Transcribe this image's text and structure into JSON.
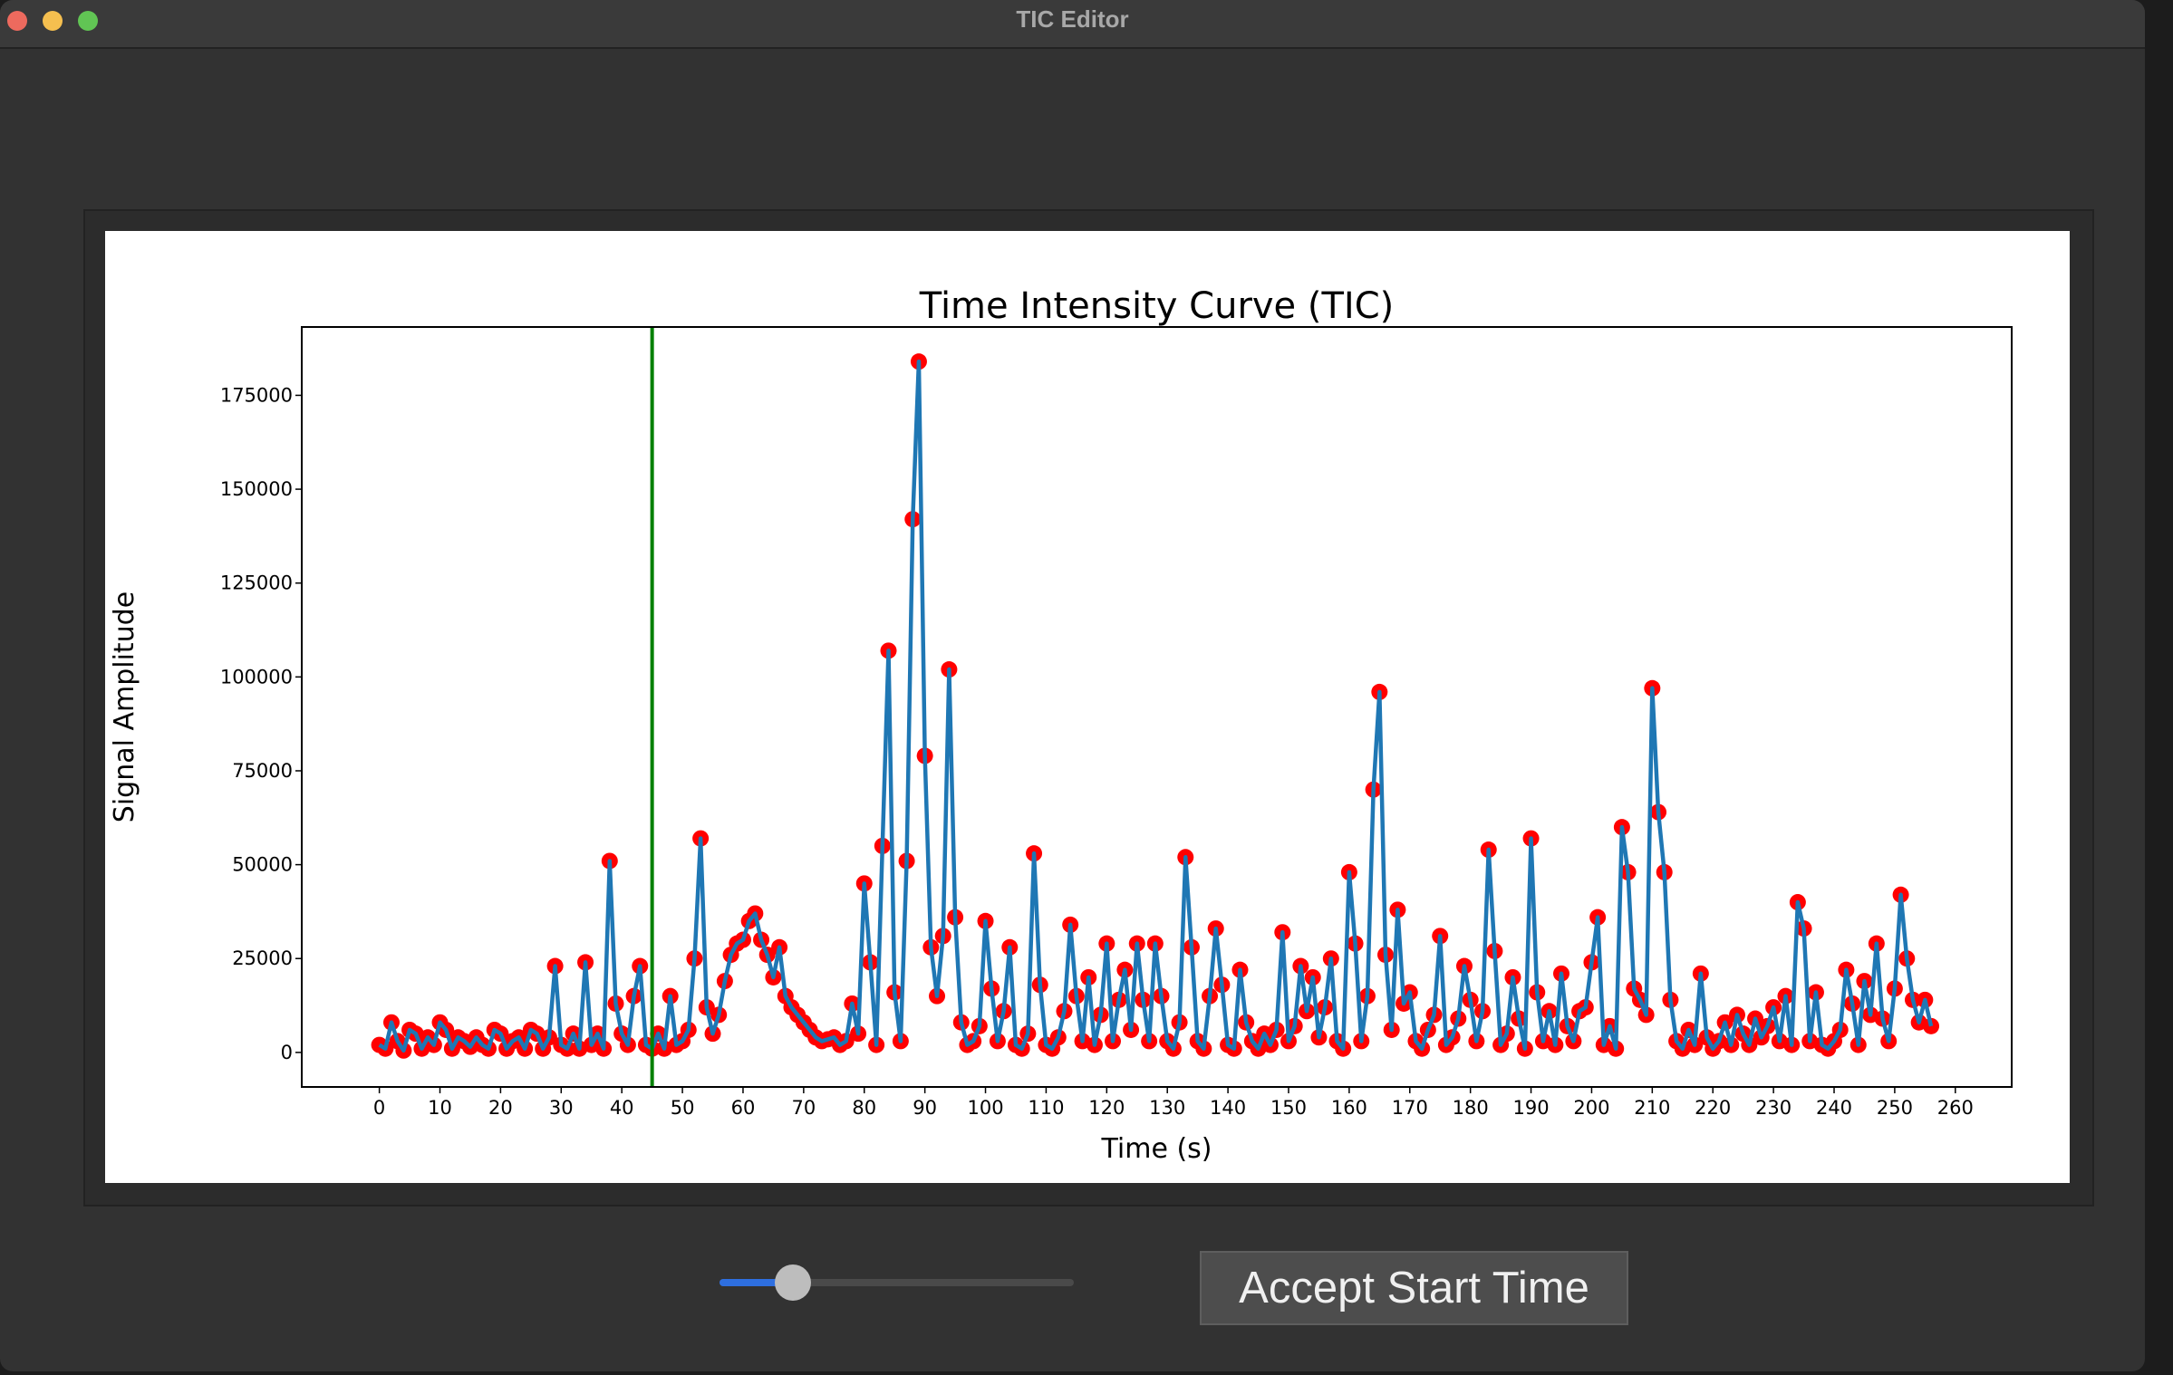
{
  "window": {
    "title": "TIC Editor"
  },
  "controls": {
    "button": "Accept Start Time"
  },
  "chart_data": {
    "type": "line",
    "title": "Time Intensity Curve (TIC)",
    "x_label": "Time (s)",
    "y_label": "Signal Amplitude",
    "xlim": [
      -12.8,
      269.3
    ],
    "ylim": [
      -9200,
      193200
    ],
    "xticks": [
      0,
      10,
      20,
      30,
      40,
      50,
      60,
      70,
      80,
      90,
      100,
      110,
      120,
      130,
      140,
      150,
      160,
      170,
      180,
      190,
      200,
      210,
      220,
      230,
      240,
      250,
      260
    ],
    "yticks": [
      0,
      25000,
      50000,
      75000,
      100000,
      125000,
      150000,
      175000
    ],
    "start_line": {
      "x": 45,
      "color": "#008000"
    },
    "x": [
      0,
      1,
      2,
      3,
      4,
      5,
      6,
      7,
      8,
      9,
      10,
      11,
      12,
      13,
      14,
      15,
      16,
      17,
      18,
      19,
      20,
      21,
      22,
      23,
      24,
      25,
      26,
      27,
      28,
      29,
      30,
      31,
      32,
      33,
      34,
      35,
      36,
      37,
      38,
      39,
      40,
      41,
      42,
      43,
      44,
      45,
      46,
      47,
      48,
      49,
      50,
      51,
      52,
      53,
      54,
      55,
      56,
      57,
      58,
      59,
      60,
      61,
      62,
      63,
      64,
      65,
      66,
      67,
      68,
      69,
      70,
      71,
      72,
      73,
      74,
      75,
      76,
      77,
      78,
      79,
      80,
      81,
      82,
      83,
      84,
      85,
      86,
      87,
      88,
      89,
      90,
      91,
      92,
      93,
      94,
      95,
      96,
      97,
      98,
      99,
      100,
      101,
      102,
      103,
      104,
      105,
      106,
      107,
      108,
      109,
      110,
      111,
      112,
      113,
      114,
      115,
      116,
      117,
      118,
      119,
      120,
      121,
      122,
      123,
      124,
      125,
      126,
      127,
      128,
      129,
      130,
      131,
      132,
      133,
      134,
      135,
      136,
      137,
      138,
      139,
      140,
      141,
      142,
      143,
      144,
      145,
      146,
      147,
      148,
      149,
      150,
      151,
      152,
      153,
      154,
      155,
      156,
      157,
      158,
      159,
      160,
      161,
      162,
      163,
      164,
      165,
      166,
      167,
      168,
      169,
      170,
      171,
      172,
      173,
      174,
      175,
      176,
      177,
      178,
      179,
      180,
      181,
      182,
      183,
      184,
      185,
      186,
      187,
      188,
      189,
      190,
      191,
      192,
      193,
      194,
      195,
      196,
      197,
      198,
      199,
      200,
      201,
      202,
      203,
      204,
      205,
      206,
      207,
      208,
      209,
      210,
      211,
      212,
      213,
      214,
      215,
      216,
      217,
      218,
      219,
      220,
      221,
      222,
      223,
      224,
      225,
      226,
      227,
      228,
      229,
      230,
      231,
      232,
      233,
      234,
      235,
      236,
      237,
      238,
      239,
      240,
      241,
      242,
      243,
      244,
      245,
      246,
      247,
      248,
      249,
      250,
      251,
      252,
      253,
      254,
      255,
      256
    ],
    "series": [
      {
        "color": "#1f77b4",
        "marker_color": "#ff0000",
        "values": [
          2000,
          1000,
          8000,
          3000,
          500,
          6000,
          5000,
          1000,
          4000,
          2000,
          8000,
          6000,
          1000,
          4000,
          3000,
          1500,
          4000,
          2000,
          1000,
          6000,
          5000,
          1000,
          3000,
          4000,
          1000,
          6000,
          5000,
          1000,
          4000,
          23000,
          2000,
          1000,
          5000,
          1000,
          24000,
          2000,
          5000,
          1000,
          51000,
          13000,
          5000,
          2000,
          15000,
          23000,
          2000,
          1000,
          5000,
          1000,
          15000,
          2000,
          3000,
          6000,
          25000,
          57000,
          12000,
          5000,
          10000,
          19000,
          26000,
          29000,
          30000,
          35000,
          37000,
          30000,
          26000,
          20000,
          28000,
          15000,
          12000,
          10000,
          8000,
          6000,
          4000,
          3000,
          3500,
          4000,
          2000,
          3000,
          13000,
          5000,
          45000,
          24000,
          2000,
          55000,
          107000,
          16000,
          3000,
          51000,
          142000,
          184000,
          79000,
          28000,
          15000,
          31000,
          102000,
          36000,
          8000,
          2000,
          3000,
          7000,
          35000,
          17000,
          3000,
          11000,
          28000,
          2000,
          1000,
          5000,
          53000,
          18000,
          2000,
          1000,
          4000,
          11000,
          34000,
          15000,
          3000,
          20000,
          2000,
          10000,
          29000,
          3000,
          14000,
          22000,
          6000,
          29000,
          14000,
          3000,
          29000,
          15000,
          3000,
          1000,
          8000,
          52000,
          28000,
          3000,
          1000,
          15000,
          33000,
          18000,
          2000,
          1000,
          22000,
          8000,
          3000,
          1000,
          5000,
          2000,
          6000,
          32000,
          3000,
          7000,
          23000,
          11000,
          20000,
          4000,
          12000,
          25000,
          3000,
          1000,
          48000,
          29000,
          3000,
          15000,
          70000,
          96000,
          26000,
          6000,
          38000,
          13000,
          16000,
          3000,
          1000,
          6000,
          10000,
          31000,
          2000,
          4000,
          9000,
          23000,
          14000,
          3000,
          11000,
          54000,
          27000,
          2000,
          5000,
          20000,
          9000,
          1000,
          57000,
          16000,
          3000,
          11000,
          2000,
          21000,
          7000,
          3000,
          11000,
          12000,
          24000,
          36000,
          2000,
          7000,
          1000,
          60000,
          48000,
          17000,
          14000,
          10000,
          97000,
          64000,
          48000,
          14000,
          3000,
          1000,
          6000,
          2000,
          21000,
          4000,
          1000,
          3000,
          8000,
          2000,
          10000,
          5000,
          2000,
          9000,
          4000,
          7000,
          12000,
          3000,
          15000,
          2000,
          40000,
          33000,
          3000,
          16000,
          2000,
          1000,
          3000,
          6000,
          22000,
          13000,
          2000,
          19000,
          10000,
          29000,
          9000,
          3000,
          17000,
          42000,
          25000,
          14000,
          8000,
          14000,
          7000
        ]
      }
    ]
  }
}
